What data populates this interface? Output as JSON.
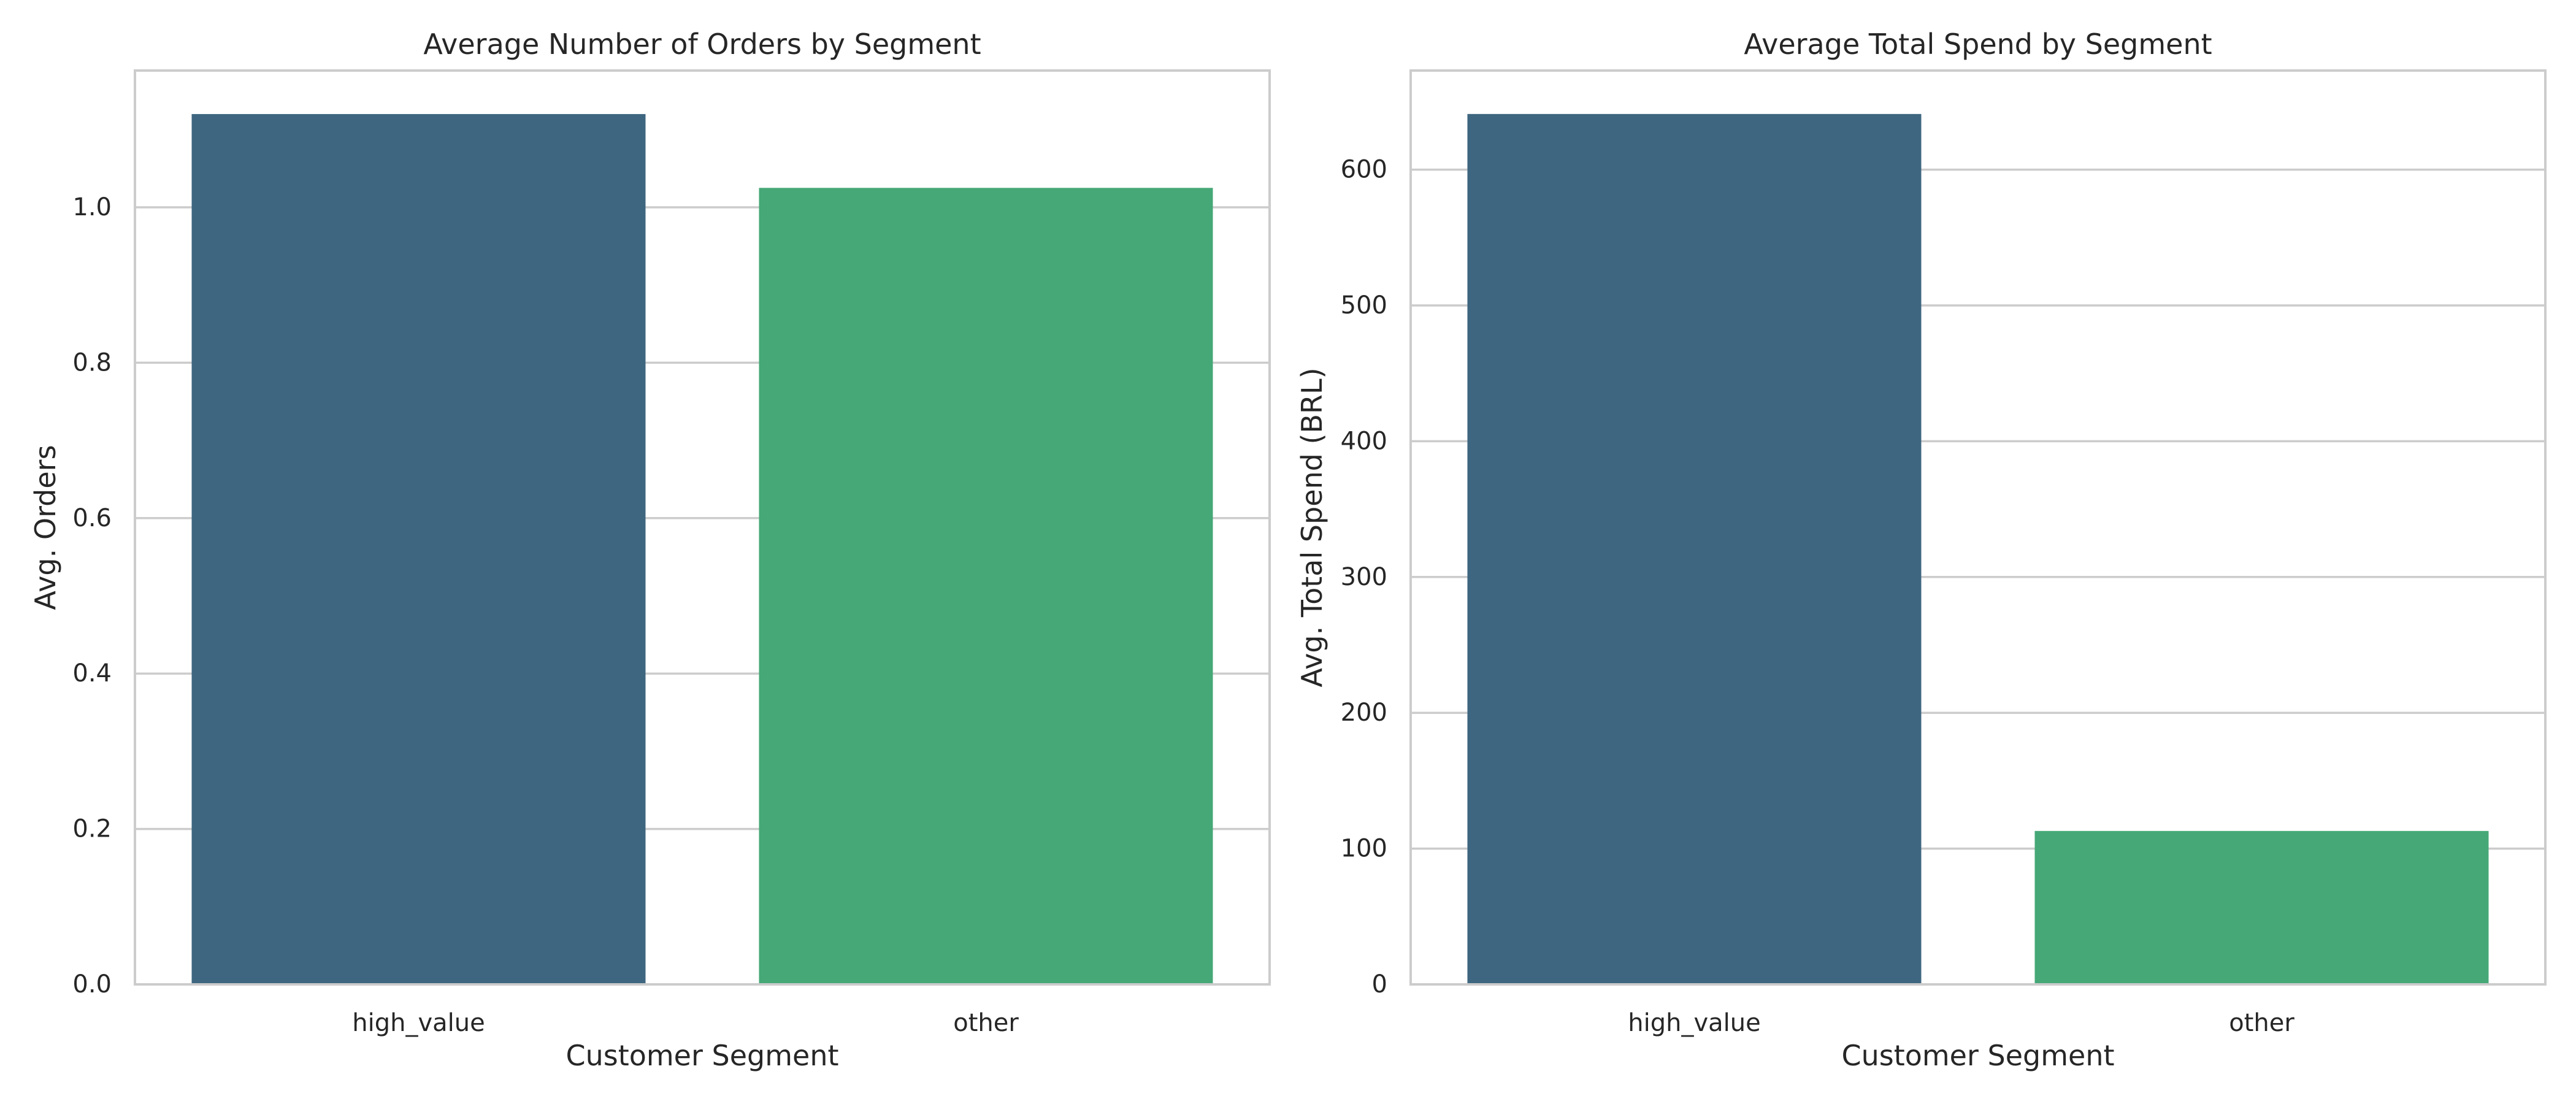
{
  "figure": {
    "background": "#ffffff"
  },
  "chart_data": [
    {
      "type": "bar",
      "title": "Average Number of Orders by Segment",
      "xlabel": "Customer Segment",
      "ylabel": "Avg. Orders",
      "categories": [
        "high_value",
        "other"
      ],
      "values": [
        1.12,
        1.025
      ],
      "colors": [
        "#3e6680",
        "#46a877"
      ],
      "ylim": [
        0,
        1.176
      ],
      "yticks": [
        0.0,
        0.2,
        0.4,
        0.6,
        0.8,
        1.0
      ],
      "ytick_labels": [
        "0.0",
        "0.2",
        "0.4",
        "0.6",
        "0.8",
        "1.0"
      ],
      "grid": true,
      "grid_color": "#cccccc",
      "frame_color": "#cccccc"
    },
    {
      "type": "bar",
      "title": "Average Total Spend by Segment",
      "xlabel": "Customer Segment",
      "ylabel": "Avg. Total Spend (BRL)",
      "categories": [
        "high_value",
        "other"
      ],
      "values": [
        641,
        113
      ],
      "colors": [
        "#3e6680",
        "#46a877"
      ],
      "ylim": [
        0,
        673
      ],
      "yticks": [
        0,
        100,
        200,
        300,
        400,
        500,
        600
      ],
      "ytick_labels": [
        "0",
        "100",
        "200",
        "300",
        "400",
        "500",
        "600"
      ],
      "grid": true,
      "grid_color": "#cccccc",
      "frame_color": "#cccccc"
    }
  ]
}
